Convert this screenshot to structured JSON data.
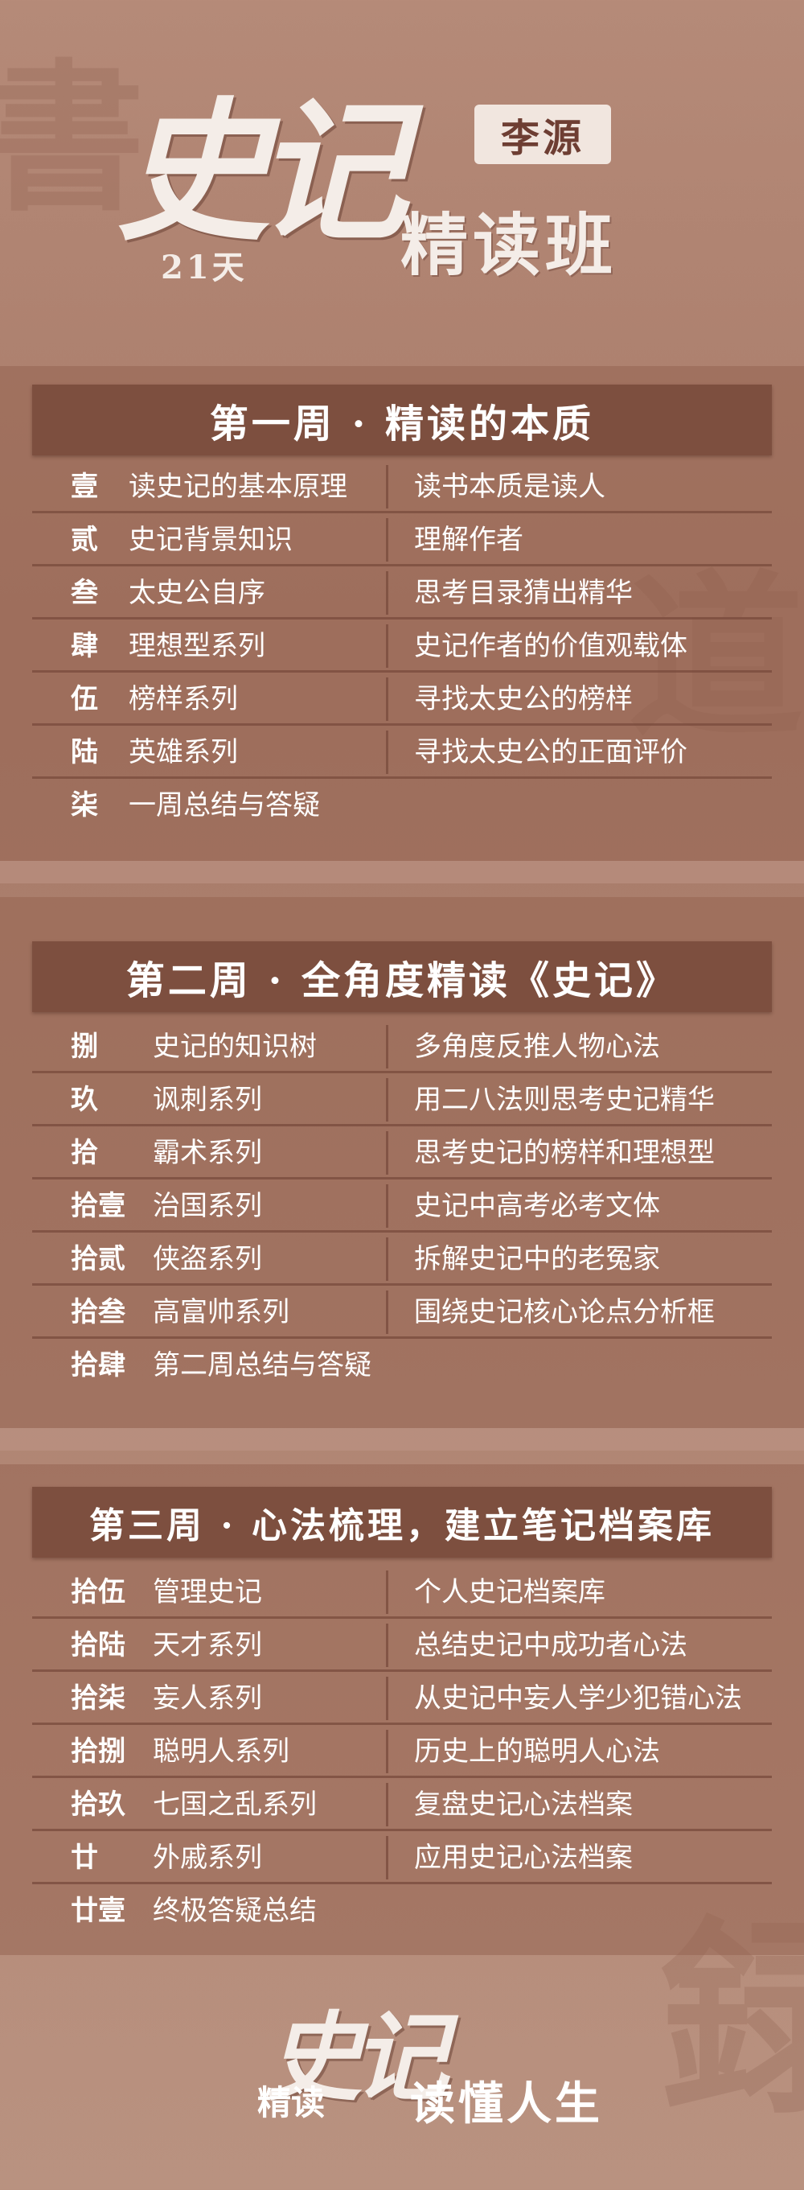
{
  "header": {
    "logo_text": "史记",
    "author": "李源",
    "days": "21天",
    "subtitle": "精读班"
  },
  "weeks": [
    {
      "title": "第一周 · 精读的本质",
      "rows": [
        {
          "num": "壹",
          "left": "读史记的基本原理",
          "right": "读书本质是读人"
        },
        {
          "num": "贰",
          "left": "史记背景知识",
          "right": "理解作者"
        },
        {
          "num": "叁",
          "left": "太史公自序",
          "right": "思考目录猜出精华"
        },
        {
          "num": "肆",
          "left": "理想型系列",
          "right": "史记作者的价值观载体"
        },
        {
          "num": "伍",
          "left": "榜样系列",
          "right": "寻找太史公的榜样"
        },
        {
          "num": "陆",
          "left": "英雄系列",
          "right": "寻找太史公的正面评价"
        },
        {
          "num": "柒",
          "left": "一周总结与答疑",
          "right": ""
        }
      ]
    },
    {
      "title": "第二周 · 全角度精读《史记》",
      "rows": [
        {
          "num": "捌",
          "left": "史记的知识树",
          "right": "多角度反推人物心法"
        },
        {
          "num": "玖",
          "left": "讽刺系列",
          "right": "用二八法则思考史记精华"
        },
        {
          "num": "拾",
          "left": "霸术系列",
          "right": "思考史记的榜样和理想型"
        },
        {
          "num": "拾壹",
          "left": "治国系列",
          "right": "史记中高考必考文体"
        },
        {
          "num": "拾贰",
          "left": "侠盗系列",
          "right": "拆解史记中的老冤家"
        },
        {
          "num": "拾叁",
          "left": "高富帅系列",
          "right": "围绕史记核心论点分析框"
        },
        {
          "num": "拾肆",
          "left": "第二周总结与答疑",
          "right": ""
        }
      ]
    },
    {
      "title": "第三周 · 心法梳理，建立笔记档案库",
      "rows": [
        {
          "num": "拾伍",
          "left": "管理史记",
          "right": "个人史记档案库"
        },
        {
          "num": "拾陆",
          "left": "天才系列",
          "right": "总结史记中成功者心法"
        },
        {
          "num": "拾柒",
          "left": "妄人系列",
          "right": "从史记中妄人学少犯错心法"
        },
        {
          "num": "拾捌",
          "left": "聪明人系列",
          "right": "历史上的聪明人心法"
        },
        {
          "num": "拾玖",
          "left": "七国之乱系列",
          "right": "复盘史记心法档案"
        },
        {
          "num": "廿",
          "left": "外戚系列",
          "right": "应用史记心法档案"
        },
        {
          "num": "廿壹",
          "left": "终极答疑总结",
          "right": ""
        }
      ]
    }
  ],
  "footer": {
    "logo_text": "史记",
    "slogan_a": "精读",
    "slogan_b": "读懂人生"
  }
}
